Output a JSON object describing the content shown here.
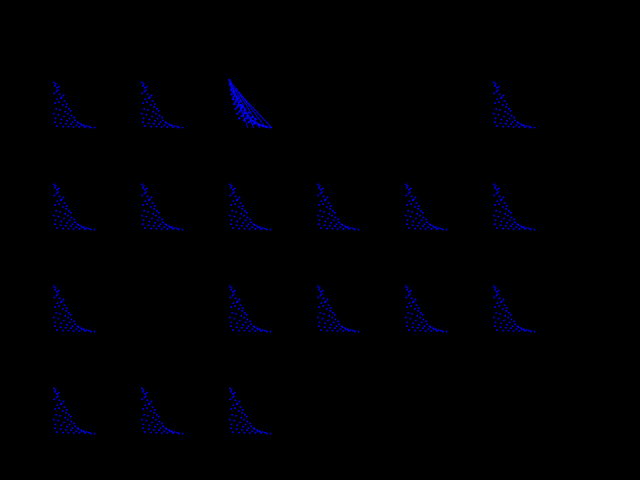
{
  "background_color": "#000000",
  "point_color": "#0000ff",
  "chart_data": {
    "type": "scatter",
    "title": "",
    "xlabel": "",
    "ylabel": "",
    "grid": false,
    "legend": "none",
    "rows": 4,
    "cols": 6,
    "xlim": [
      0,
      10
    ],
    "ylim": [
      0,
      10
    ],
    "panels": [
      {
        "row": 0,
        "col": 0,
        "shown": true,
        "variant": "sparse"
      },
      {
        "row": 0,
        "col": 1,
        "shown": true,
        "variant": "sparse"
      },
      {
        "row": 0,
        "col": 2,
        "shown": true,
        "variant": "dense"
      },
      {
        "row": 0,
        "col": 3,
        "shown": false,
        "variant": "sparse"
      },
      {
        "row": 0,
        "col": 4,
        "shown": false,
        "variant": "sparse"
      },
      {
        "row": 0,
        "col": 5,
        "shown": true,
        "variant": "sparse"
      },
      {
        "row": 1,
        "col": 0,
        "shown": true,
        "variant": "sparse"
      },
      {
        "row": 1,
        "col": 1,
        "shown": true,
        "variant": "sparse"
      },
      {
        "row": 1,
        "col": 2,
        "shown": true,
        "variant": "sparse"
      },
      {
        "row": 1,
        "col": 3,
        "shown": true,
        "variant": "sparse"
      },
      {
        "row": 1,
        "col": 4,
        "shown": true,
        "variant": "sparse"
      },
      {
        "row": 1,
        "col": 5,
        "shown": true,
        "variant": "sparse"
      },
      {
        "row": 2,
        "col": 0,
        "shown": true,
        "variant": "sparse"
      },
      {
        "row": 2,
        "col": 1,
        "shown": false,
        "variant": "sparse"
      },
      {
        "row": 2,
        "col": 2,
        "shown": true,
        "variant": "sparse"
      },
      {
        "row": 2,
        "col": 3,
        "shown": true,
        "variant": "sparse"
      },
      {
        "row": 2,
        "col": 4,
        "shown": true,
        "variant": "sparse"
      },
      {
        "row": 2,
        "col": 5,
        "shown": true,
        "variant": "sparse"
      },
      {
        "row": 3,
        "col": 0,
        "shown": true,
        "variant": "sparse"
      },
      {
        "row": 3,
        "col": 1,
        "shown": true,
        "variant": "sparse"
      },
      {
        "row": 3,
        "col": 2,
        "shown": true,
        "variant": "sparse"
      },
      {
        "row": 3,
        "col": 3,
        "shown": false,
        "variant": "sparse"
      },
      {
        "row": 3,
        "col": 4,
        "shown": false,
        "variant": "sparse"
      },
      {
        "row": 3,
        "col": 5,
        "shown": false,
        "variant": "sparse"
      }
    ],
    "series": [
      {
        "variant": "sparse",
        "x": [
          0.2,
          0.4,
          0.6,
          0.9,
          1.1,
          1.3,
          0.3,
          0.8,
          1.5,
          2.0,
          2.4,
          1.0,
          1.8,
          2.6,
          3.1,
          0.5,
          1.4,
          2.2,
          3.0,
          3.6,
          4.0,
          0.7,
          1.6,
          2.8,
          3.4,
          4.2,
          4.8,
          0.2,
          1.2,
          2.5,
          3.8,
          5.0,
          5.6,
          0.6,
          1.9,
          3.2,
          4.4,
          5.8,
          6.4,
          7.0,
          0.4,
          1.7,
          2.9,
          4.1,
          5.3,
          6.6,
          7.6,
          8.2,
          0.9,
          2.3,
          3.5,
          4.7,
          6.0,
          7.2,
          8.6,
          9.4
        ],
        "y": [
          9.5,
          8.8,
          9.2,
          8.4,
          7.9,
          8.6,
          7.2,
          7.6,
          7.0,
          6.4,
          6.8,
          6.0,
          6.2,
          5.6,
          5.0,
          5.2,
          5.4,
          4.8,
          4.4,
          4.0,
          3.6,
          4.0,
          3.8,
          3.4,
          3.0,
          2.6,
          2.2,
          3.0,
          2.8,
          2.4,
          2.0,
          1.6,
          1.2,
          2.0,
          1.8,
          1.5,
          1.2,
          1.0,
          0.8,
          0.6,
          1.2,
          1.0,
          0.9,
          0.8,
          0.6,
          0.5,
          0.4,
          0.3,
          0.4,
          0.3,
          0.3,
          0.2,
          0.2,
          0.2,
          0.1,
          0.1
        ]
      },
      {
        "variant": "dense",
        "x": [
          0.1,
          0.3,
          0.5,
          0.2,
          0.6,
          0.9,
          1.2,
          0.4,
          0.8,
          1.3,
          1.7,
          2.1,
          0.6,
          1.1,
          1.6,
          2.2,
          2.7,
          3.1,
          0.9,
          1.5,
          2.1,
          2.8,
          3.4,
          3.9,
          4.4,
          1.2,
          1.9,
          2.7,
          3.5,
          4.2,
          4.9,
          5.5,
          1.5,
          2.4,
          3.3,
          4.2,
          5.0,
          5.8,
          6.5,
          7.1,
          1.9,
          2.9,
          3.9,
          4.9,
          5.9,
          6.8,
          7.6,
          8.3,
          2.3,
          3.4,
          4.5,
          5.6,
          6.7,
          7.7,
          8.6,
          9.3,
          0.3,
          0.7,
          1.0,
          1.4,
          1.8,
          2.5,
          3.0,
          3.7,
          4.6,
          5.3,
          6.1
        ],
        "y": [
          10.0,
          9.6,
          9.2,
          9.0,
          8.6,
          8.2,
          7.8,
          8.0,
          7.6,
          7.1,
          6.6,
          6.1,
          7.0,
          6.5,
          5.9,
          5.3,
          4.8,
          4.3,
          6.0,
          5.4,
          4.8,
          4.2,
          3.6,
          3.1,
          2.6,
          5.0,
          4.4,
          3.8,
          3.1,
          2.5,
          2.0,
          1.5,
          4.0,
          3.4,
          2.8,
          2.2,
          1.6,
          1.2,
          0.9,
          0.6,
          3.0,
          2.5,
          2.0,
          1.5,
          1.0,
          0.7,
          0.5,
          0.3,
          2.0,
          1.6,
          1.2,
          0.9,
          0.6,
          0.4,
          0.2,
          0.1,
          9.4,
          8.4,
          7.4,
          6.8,
          6.3,
          5.6,
          4.6,
          3.9,
          3.2,
          2.3,
          1.9
        ]
      }
    ]
  }
}
